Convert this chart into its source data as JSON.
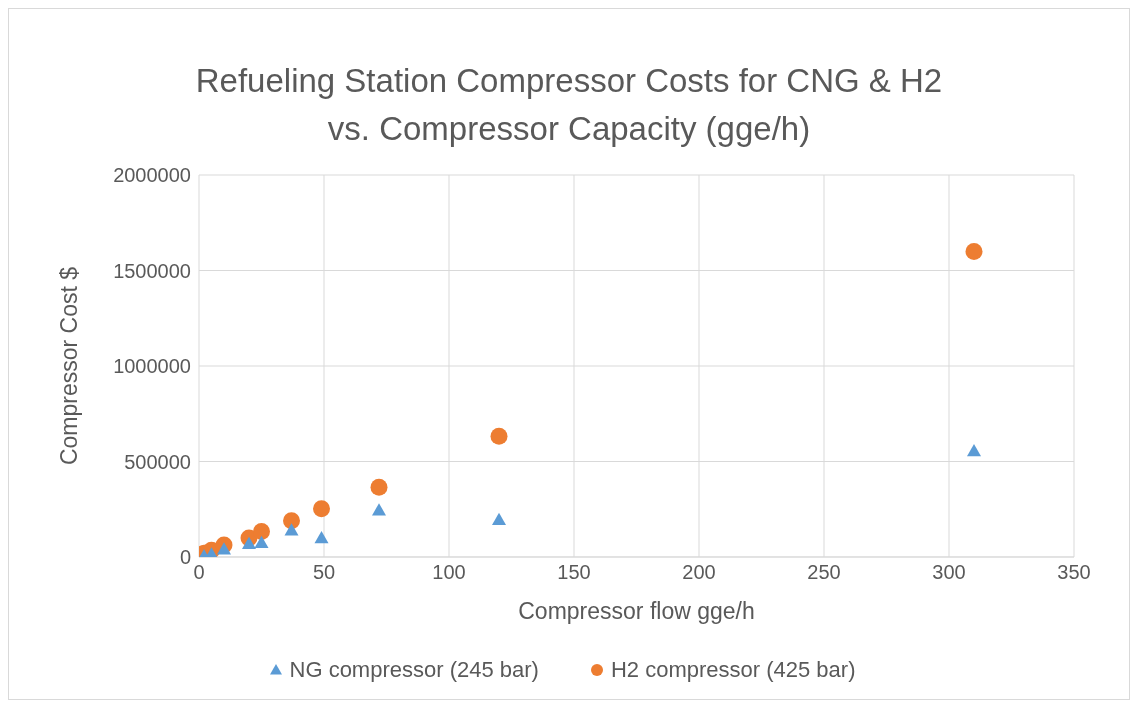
{
  "chart_data": {
    "type": "scatter",
    "title": "Refueling Station Compressor Costs for CNG & H2\nvs. Compressor Capacity (gge/h)",
    "xlabel": "Compressor  flow gge/h",
    "ylabel": "Compressor  Cost  $",
    "x": [
      2,
      5,
      10,
      20,
      25,
      37,
      49,
      72,
      120,
      310
    ],
    "series": [
      {
        "name": "NG compressor (245 bar)",
        "color": "#5b9bd5",
        "marker": "triangle",
        "values": [
          5000,
          15000,
          40000,
          70000,
          75000,
          140000,
          100000,
          245000,
          195000,
          555000
        ]
      },
      {
        "name": "H2 compressor (425 bar)",
        "color": "#ed7d31",
        "marker": "circle",
        "values": [
          20000,
          35000,
          63000,
          100000,
          133000,
          190000,
          253000,
          365000,
          632000,
          1600000
        ]
      }
    ],
    "xlim": [
      0,
      350
    ],
    "xticks": [
      0,
      50,
      100,
      150,
      200,
      250,
      300,
      350
    ],
    "ylim": [
      0,
      2000000
    ],
    "yticks": [
      0,
      500000,
      1000000,
      1500000,
      2000000
    ],
    "grid": true,
    "legend": "bottom"
  }
}
